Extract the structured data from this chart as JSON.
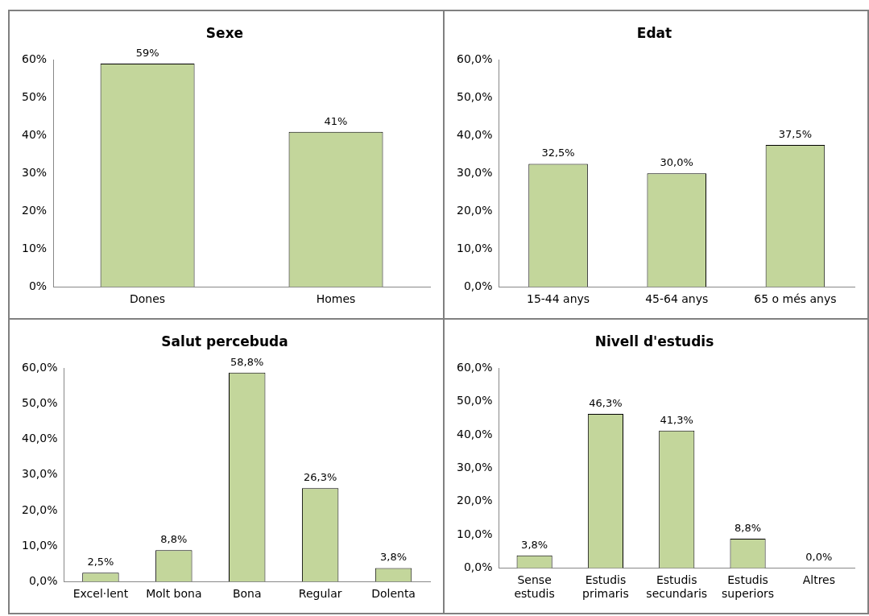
{
  "chart_data": [
    {
      "type": "bar",
      "title": "Sexe",
      "categories": [
        "Dones",
        "Homes"
      ],
      "values": [
        59,
        41
      ],
      "color": "#c3d69b",
      "ylim": [
        0,
        60
      ],
      "yticks": [
        {
          "value": 0,
          "label": "0%"
        },
        {
          "value": 10,
          "label": "10%"
        },
        {
          "value": 20,
          "label": "20%"
        },
        {
          "value": 30,
          "label": "30%"
        },
        {
          "value": 40,
          "label": "40%"
        },
        {
          "value": 50,
          "label": "50%"
        },
        {
          "value": 60,
          "label": "60%"
        }
      ],
      "value_labels": [
        "59%",
        "41%"
      ],
      "grid": false,
      "legend": false
    },
    {
      "type": "bar",
      "title": "Edat",
      "categories": [
        "15-44 anys",
        "45-64 anys",
        "65 o més anys"
      ],
      "values": [
        32.5,
        30.0,
        37.5
      ],
      "color": "#c3d69b",
      "ylim": [
        0,
        60
      ],
      "yticks": [
        {
          "value": 0,
          "label": "0,0%"
        },
        {
          "value": 10,
          "label": "10,0%"
        },
        {
          "value": 20,
          "label": "20,0%"
        },
        {
          "value": 30,
          "label": "30,0%"
        },
        {
          "value": 40,
          "label": "40,0%"
        },
        {
          "value": 50,
          "label": "50,0%"
        },
        {
          "value": 60,
          "label": "60,0%"
        }
      ],
      "value_labels": [
        "32,5%",
        "30,0%",
        "37,5%"
      ],
      "grid": false,
      "legend": false
    },
    {
      "type": "bar",
      "title": "Salut percebuda",
      "categories": [
        "Excel·lent",
        "Molt bona",
        "Bona",
        "Regular",
        "Dolenta"
      ],
      "values": [
        2.5,
        8.8,
        58.8,
        26.3,
        3.8
      ],
      "color": "#c3d69b",
      "ylim": [
        0,
        60
      ],
      "yticks": [
        {
          "value": 0,
          "label": "0,0%"
        },
        {
          "value": 10,
          "label": "10,0%"
        },
        {
          "value": 20,
          "label": "20,0%"
        },
        {
          "value": 30,
          "label": "30,0%"
        },
        {
          "value": 40,
          "label": "40,0%"
        },
        {
          "value": 50,
          "label": "50,0%"
        },
        {
          "value": 60,
          "label": "60,0%"
        }
      ],
      "value_labels": [
        "2,5%",
        "8,8%",
        "58,8%",
        "26,3%",
        "3,8%"
      ],
      "grid": false,
      "legend": false
    },
    {
      "type": "bar",
      "title": "Nivell d'estudis",
      "categories": [
        "Sense\nestudis",
        "Estudis\nprimaris",
        "Estudis\nsecundaris",
        "Estudis\nsuperiors",
        "Altres"
      ],
      "values": [
        3.8,
        46.3,
        41.3,
        8.8,
        0.0
      ],
      "color": "#c3d69b",
      "ylim": [
        0,
        60
      ],
      "yticks": [
        {
          "value": 0,
          "label": "0,0%"
        },
        {
          "value": 10,
          "label": "10,0%"
        },
        {
          "value": 20,
          "label": "20,0%"
        },
        {
          "value": 30,
          "label": "30,0%"
        },
        {
          "value": 40,
          "label": "40,0%"
        },
        {
          "value": 50,
          "label": "50,0%"
        },
        {
          "value": 60,
          "label": "60,0%"
        }
      ],
      "value_labels": [
        "3,8%",
        "46,3%",
        "41,3%",
        "8,8%",
        "0,0%"
      ],
      "grid": false,
      "legend": false
    }
  ]
}
